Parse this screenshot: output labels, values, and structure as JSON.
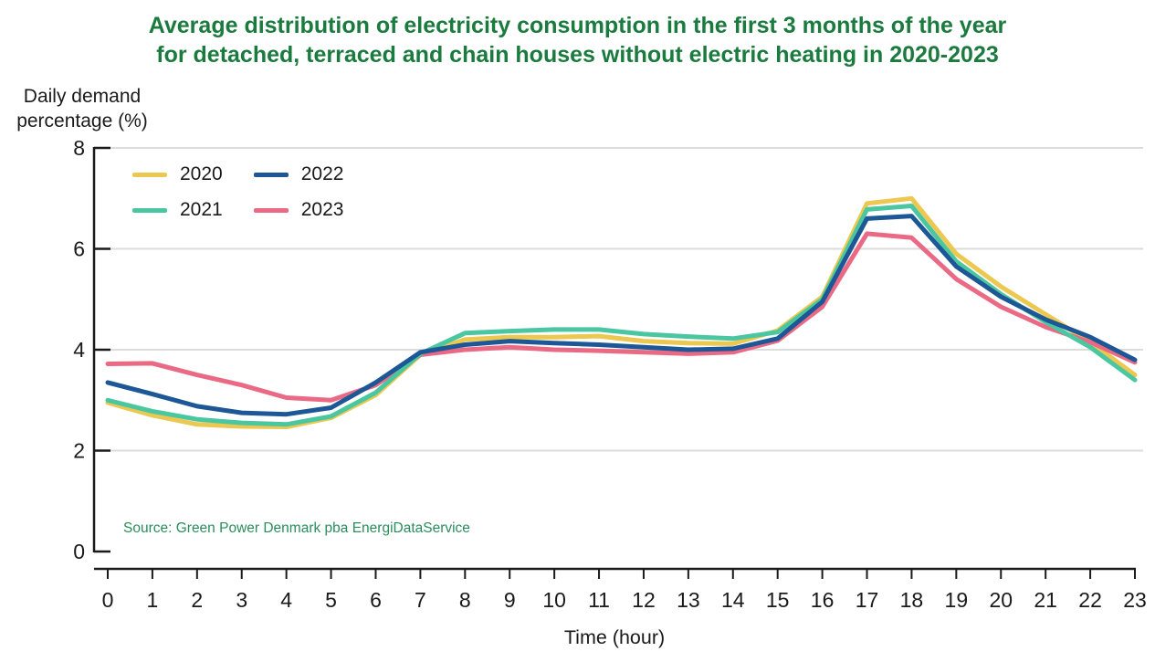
{
  "chart_data": {
    "type": "line",
    "title_lines": [
      "Average distribution of electricity consumption in the first 3 months of the year",
      "for detached, terraced and chain houses without electric heating in 2020-2023"
    ],
    "ylabel_lines": [
      "Daily demand",
      "percentage (%)"
    ],
    "xlabel": "Time (hour)",
    "source": "Source: Green Power Denmark pba EnergiDataService",
    "x": [
      0,
      1,
      2,
      3,
      4,
      5,
      6,
      7,
      8,
      9,
      10,
      11,
      12,
      13,
      14,
      15,
      16,
      17,
      18,
      19,
      20,
      21,
      22,
      23
    ],
    "yticks": [
      0,
      2,
      4,
      6,
      8
    ],
    "ylim": [
      0,
      8
    ],
    "grid": true,
    "legend_position": "upper-left",
    "legend_order": [
      0,
      2,
      1,
      3
    ],
    "draw_order": [
      0,
      3,
      1,
      2
    ],
    "series": [
      {
        "name": "2020",
        "color": "#ecc850",
        "values": [
          2.95,
          2.7,
          2.52,
          2.48,
          2.47,
          2.65,
          3.1,
          3.9,
          4.2,
          4.25,
          4.25,
          4.27,
          4.17,
          4.13,
          4.12,
          4.38,
          5.05,
          6.9,
          7.0,
          5.9,
          5.25,
          4.7,
          4.15,
          3.5
        ]
      },
      {
        "name": "2021",
        "color": "#4ac7a0",
        "values": [
          3.0,
          2.78,
          2.62,
          2.55,
          2.52,
          2.68,
          3.15,
          3.92,
          4.33,
          4.37,
          4.4,
          4.4,
          4.31,
          4.26,
          4.22,
          4.35,
          5.0,
          6.78,
          6.85,
          5.75,
          5.1,
          4.55,
          4.05,
          3.4
        ]
      },
      {
        "name": "2022",
        "color": "#1d5796",
        "values": [
          3.35,
          3.12,
          2.88,
          2.75,
          2.72,
          2.85,
          3.35,
          3.95,
          4.1,
          4.17,
          4.13,
          4.1,
          4.05,
          4.0,
          4.02,
          4.22,
          4.95,
          6.6,
          6.65,
          5.65,
          5.05,
          4.6,
          4.25,
          3.8
        ]
      },
      {
        "name": "2023",
        "color": "#ea6a85",
        "values": [
          3.72,
          3.73,
          3.5,
          3.3,
          3.05,
          3.0,
          3.3,
          3.9,
          4.0,
          4.05,
          4.0,
          3.98,
          3.95,
          3.92,
          3.95,
          4.18,
          4.85,
          6.3,
          6.22,
          5.4,
          4.85,
          4.45,
          4.15,
          3.75
        ]
      }
    ],
    "colors": {
      "title": "#1b7b3e",
      "source": "#2a8d5c",
      "axis": "#1a1a1a",
      "grid": "#dcdcdc"
    }
  }
}
